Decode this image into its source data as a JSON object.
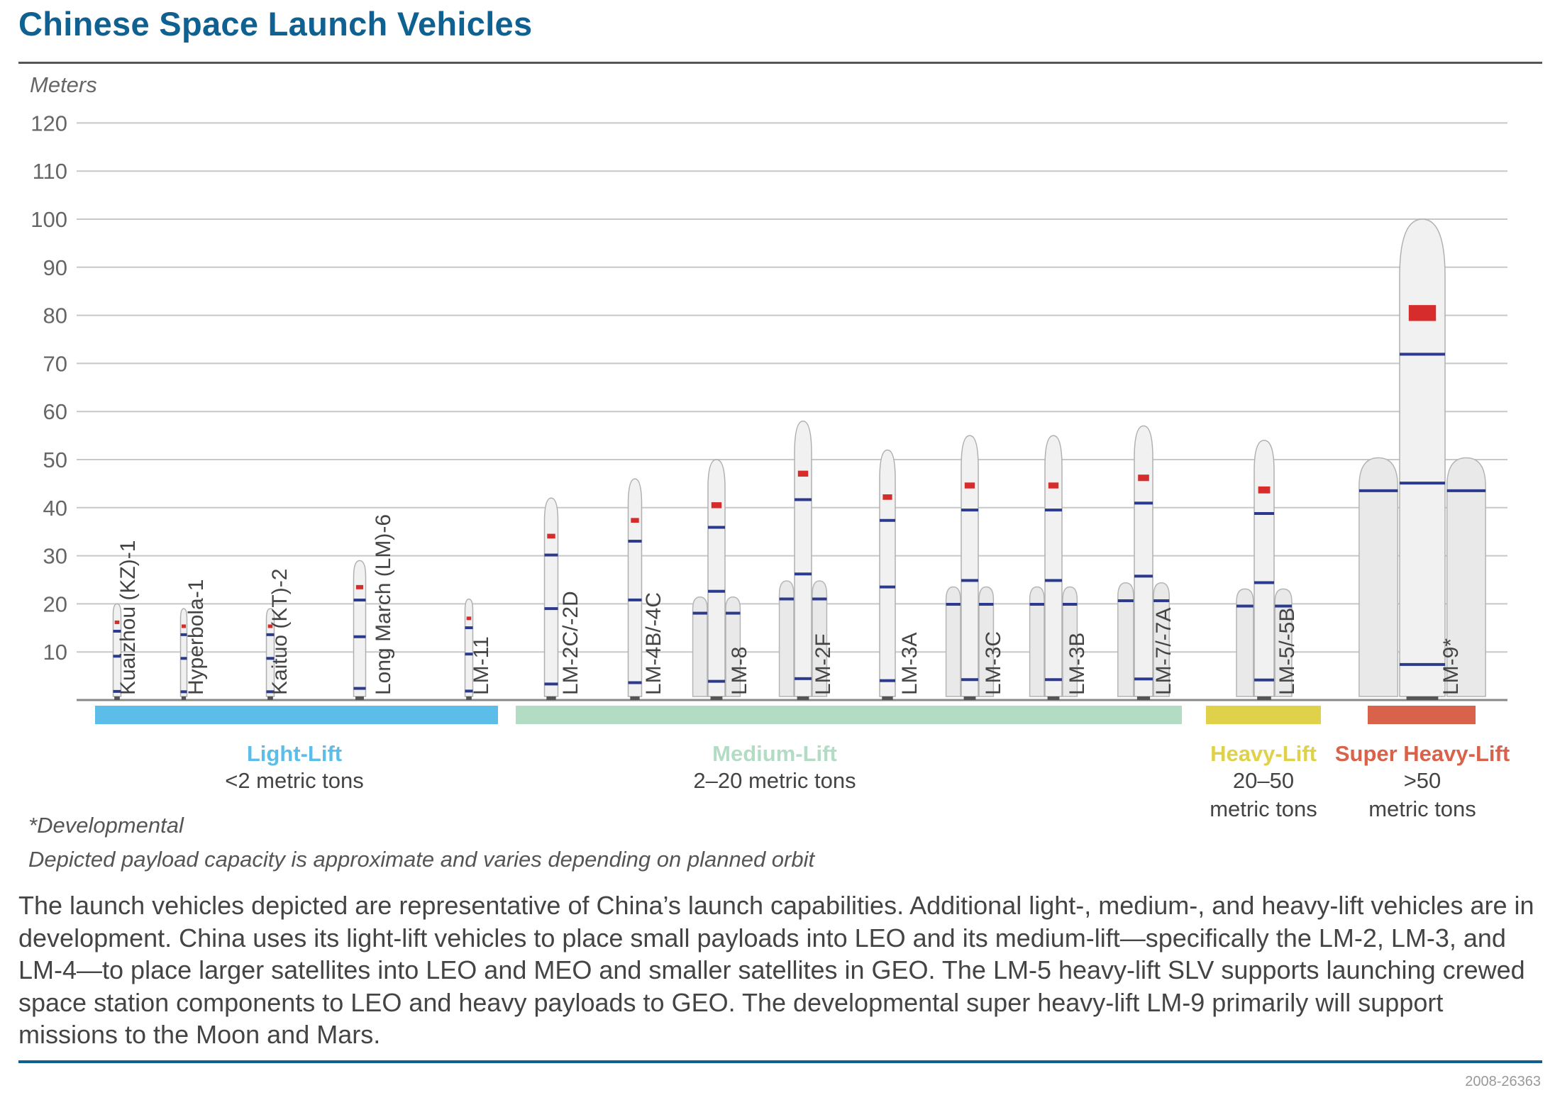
{
  "title": "Chinese Space Launch Vehicles",
  "chart_data": {
    "type": "bar",
    "title": "Chinese Space Launch Vehicles",
    "ylabel": "Meters",
    "ylim": [
      0,
      120
    ],
    "yticks": [
      10,
      20,
      30,
      40,
      50,
      60,
      70,
      80,
      90,
      100,
      110,
      120
    ],
    "grid": true,
    "categories": [
      "Kuaizhou (KZ)-1",
      "Hyperbola-1",
      "Kaituo (KT)-2",
      "Long March (LM)-6",
      "LM-11",
      "LM-2C/-2D",
      "LM-4B/-4C",
      "LM-8",
      "LM-2F",
      "LM-3A",
      "LM-3C",
      "LM-3B",
      "LM-7/-7A",
      "LM-5/-5B",
      "LM-9*"
    ],
    "values": [
      20,
      19,
      19,
      29,
      21,
      42,
      46,
      50,
      58,
      52,
      55,
      55,
      57,
      54,
      100
    ],
    "groups": [
      {
        "name": "Light-Lift",
        "capacity": "<2 metric tons",
        "color": "#5dbde9",
        "range": [
          0,
          4
        ]
      },
      {
        "name": "Medium-Lift",
        "capacity": "2–20 metric tons",
        "color": "#b3dcc4",
        "range": [
          5,
          12
        ]
      },
      {
        "name": "Heavy-Lift",
        "capacity_lines": [
          "20–50",
          "metric tons"
        ],
        "color": "#dfd24a",
        "range": [
          13,
          13
        ]
      },
      {
        "name": "Super Heavy-Lift",
        "capacity_lines": [
          ">50",
          "metric tons"
        ],
        "color": "#d9624a",
        "range": [
          14,
          14
        ]
      }
    ]
  },
  "footnotes": {
    "developmental": "*Developmental",
    "payload": "Depicted payload capacity is approximate and varies depending on planned orbit"
  },
  "paragraph": "The launch vehicles depicted are representative of China’s launch capabilities. Additional light-, medium-, and heavy-lift vehicles are in development. China uses its light-lift vehicles to place small payloads into LEO and its medium-lift—specifically the LM-2, LM-3, and LM-4—to place larger satellites into LEO and MEO and smaller satellites in GEO. The LM-5 heavy-lift SLV supports launching crewed space station components to LEO and heavy payloads to GEO. The developmental super heavy-lift LM-9 primarily will support missions to the Moon and Mars.",
  "figure_id": "2008-26363"
}
